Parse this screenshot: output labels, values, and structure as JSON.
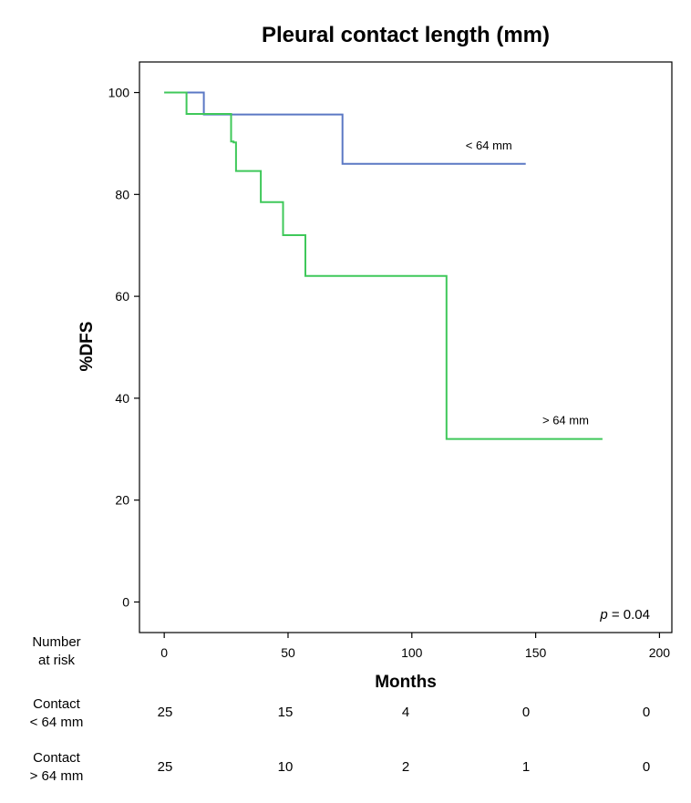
{
  "chart_data": {
    "type": "line",
    "title": "Pleural contact length (mm)",
    "xlabel": "Months",
    "ylabel": "%DFS",
    "xlim": [
      -10,
      205
    ],
    "ylim": [
      -6,
      106
    ],
    "xticks": [
      0,
      50,
      100,
      150,
      200
    ],
    "yticks": [
      0,
      20,
      40,
      60,
      80,
      100
    ],
    "grid": false,
    "step": true,
    "series": [
      {
        "name": "< 64 mm",
        "color": "#5b78c4",
        "x": [
          0,
          16,
          16,
          72,
          72,
          146
        ],
        "y": [
          100,
          100,
          95.7,
          95.7,
          86,
          86
        ]
      },
      {
        "name": "> 64 mm",
        "color": "#3fc85a",
        "x": [
          0,
          9,
          9,
          27,
          27,
          28,
          28,
          29,
          29,
          39,
          39,
          48,
          48,
          57,
          57,
          114,
          114,
          177
        ],
        "y": [
          100,
          100,
          95.8,
          95.8,
          90.4,
          90.4,
          90.2,
          90.2,
          84.6,
          84.6,
          78.5,
          78.5,
          72,
          72,
          64,
          64,
          32,
          32
        ]
      }
    ],
    "annotation": {
      "prefix": "p",
      "text": " = 0.04"
    }
  },
  "risk_table": {
    "header_line1": "Number",
    "header_line2": "at risk",
    "rows": [
      {
        "line1": "Contact",
        "line2": "< 64 mm",
        "values": [
          "25",
          "15",
          "4",
          "0",
          "0"
        ]
      },
      {
        "line1": "Contact",
        "line2": "> 64 mm",
        "values": [
          "25",
          "10",
          "2",
          "1",
          "0"
        ]
      }
    ]
  }
}
